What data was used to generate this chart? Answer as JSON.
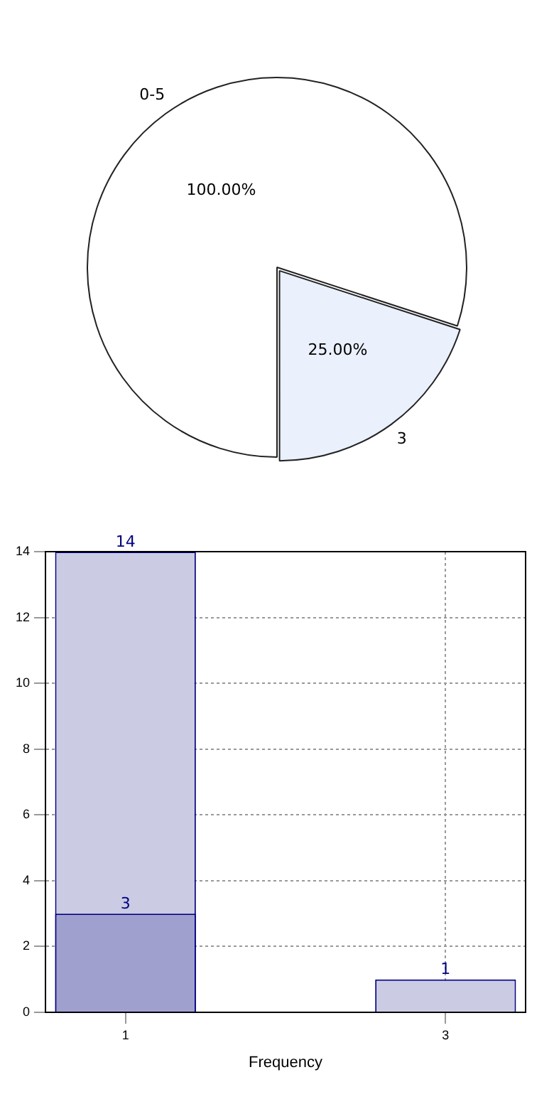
{
  "chart_data": [
    {
      "type": "pie",
      "categories": [
        "0-5",
        "3"
      ],
      "values": [
        100,
        25
      ],
      "value_labels": [
        "100.00%",
        "25.00%"
      ],
      "colors": [
        "#ffffff",
        "#eaf0fc"
      ]
    },
    {
      "type": "bar",
      "xlabel": "Frequency",
      "categories": [
        "1",
        null,
        "3"
      ],
      "series": [
        {
          "color": "#cbcbe3",
          "values": [
            14,
            null,
            1
          ]
        },
        {
          "color": "#a0a0cf",
          "values": [
            3,
            null,
            null
          ]
        }
      ],
      "ylim": [
        0,
        14
      ],
      "yticks": [
        0,
        2,
        4,
        6,
        8,
        10,
        12,
        14
      ],
      "grid": true,
      "data_labels": true
    }
  ]
}
